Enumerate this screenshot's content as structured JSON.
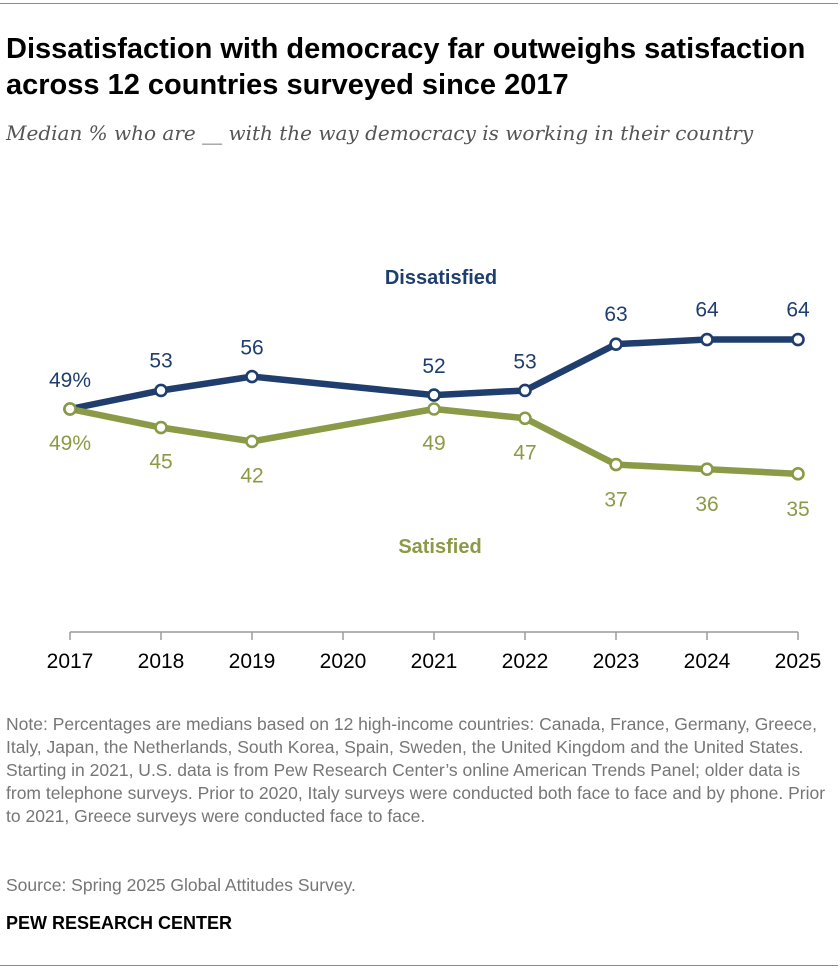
{
  "title": "Dissatisfaction with democracy far outweighs satisfaction across 12 countries surveyed since 2017",
  "subtitle": "Median % who are __ with the way democracy is working in their country",
  "chart_data": {
    "type": "line",
    "x": [
      2017,
      2018,
      2019,
      2021,
      2022,
      2023,
      2024,
      2025
    ],
    "x_ticks": [
      "2017",
      "2018",
      "2019",
      "2020",
      "2021",
      "2022",
      "2023",
      "2024",
      "2025"
    ],
    "xlim": [
      2017,
      2025
    ],
    "series": [
      {
        "name": "Dissatisfied",
        "color": "#1f3e6e",
        "values": [
          49,
          53,
          56,
          52,
          53,
          63,
          64,
          64
        ],
        "labels": [
          "49%",
          "53",
          "56",
          "52",
          "53",
          "63",
          "64",
          "64"
        ]
      },
      {
        "name": "Satisfied",
        "color": "#8b9a46",
        "values": [
          49,
          45,
          42,
          49,
          47,
          37,
          36,
          35
        ],
        "labels": [
          "49%",
          "45",
          "42",
          "49",
          "47",
          "37",
          "36",
          "35"
        ]
      }
    ],
    "legend": "inline labels",
    "grid": false
  },
  "note": "Note: Percentages are medians based on 12 high-income countries: Canada, France, Germany, Greece, Italy, Japan, the Netherlands, South Korea, Spain, Sweden, the United Kingdom and the United States. Starting in 2021, U.S. data is from Pew Research Center’s online American Trends Panel; older data is from telephone surveys. Prior to 2020, Italy surveys were conducted both face to face and by phone. Prior to 2021, Greece surveys were conducted face to face.",
  "source": "Source: Spring 2025 Global Attitudes Survey.",
  "organization": "PEW RESEARCH CENTER"
}
